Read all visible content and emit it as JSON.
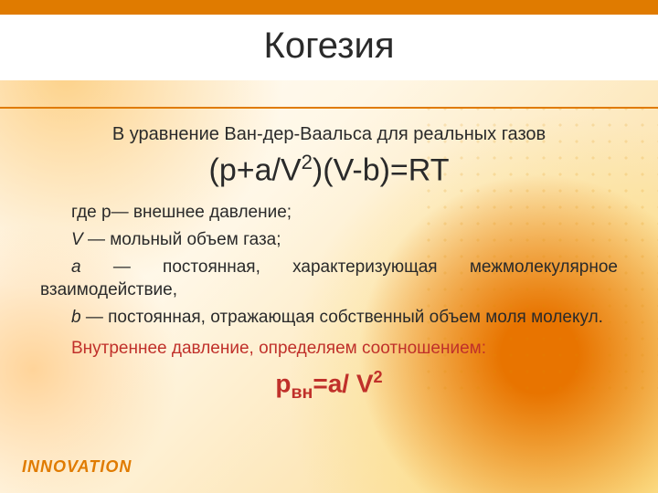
{
  "colors": {
    "accent_orange": "#e07b00",
    "accent_red": "#c0302a",
    "text_dark": "#2a2a2a",
    "bg_orange_light": "#fdd28a",
    "bg_orange_strong": "#e87400",
    "bg_orange_soft": "#ffd49a",
    "bg_yellow": "#fadc78"
  },
  "title": "Когезия",
  "intro": "В уравнение Ван-дер-Ваальса для реальных газов",
  "equation_main_html": "(р+а/V<sup>2</sup>)(V-b)=RT",
  "defs": {
    "p_html": "где р— внешнее давление;",
    "v_html": "<span class='it'>V</span> — мольный объем газа;",
    "a_html": "<span class='it'>а</span> — постоянная, характеризующая межмолекулярное взаимодействие,",
    "b_html": "<span class='it'>b</span> — постоянная, отражающая собственный объем моля молекул."
  },
  "inner_pressure_label": "Внутреннее   давление,  определяем соотношением:",
  "equation_inner_html": "р<sub>вн</sub>=а/ V<sup>2</sup>",
  "footer": "INNOVATION"
}
